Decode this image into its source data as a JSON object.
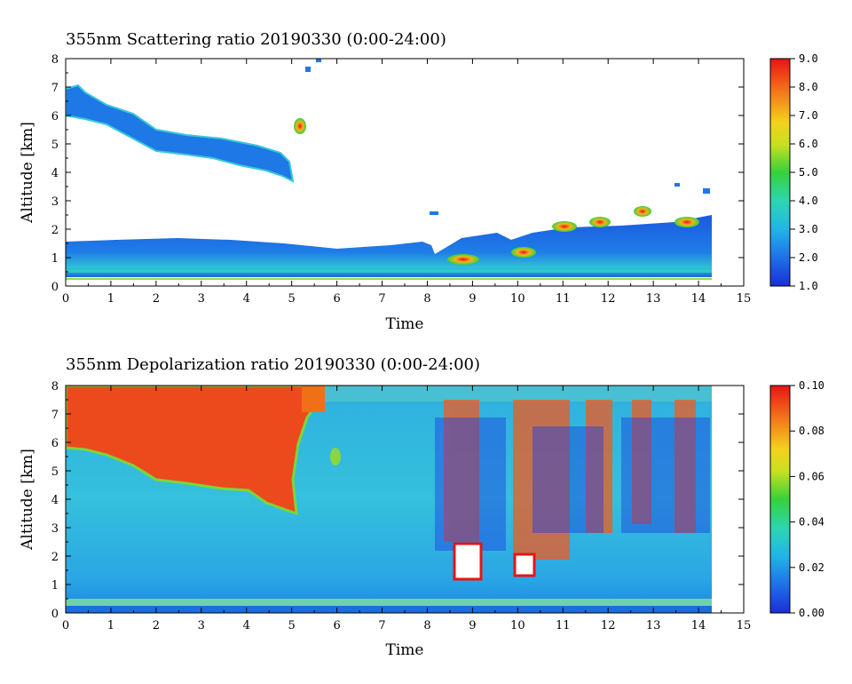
{
  "chart_data": [
    {
      "type": "heatmap",
      "title": "355nm Scattering ratio  20190330 (0:00-24:00)",
      "xlabel": "Time",
      "ylabel": "Altitude [km]",
      "xlim": [
        0,
        15
      ],
      "ylim": [
        0,
        8
      ],
      "x_ticks": [
        "0",
        "1",
        "2",
        "3",
        "4",
        "5",
        "6",
        "7",
        "8",
        "9",
        "10",
        "11",
        "12",
        "13",
        "14",
        "15"
      ],
      "y_ticks": [
        "0",
        "1",
        "2",
        "3",
        "4",
        "5",
        "6",
        "7",
        "8"
      ],
      "colorbar": {
        "min": 1.0,
        "max": 9.0,
        "ticks": [
          "1.0",
          "2.0",
          "3.0",
          "4.0",
          "5.0",
          "6.0",
          "7.0",
          "8.0",
          "9.0"
        ]
      },
      "data_end_time": 14.3,
      "colors": {
        "low": "#1a4fe0",
        "mid": "#33c4d0",
        "high": "#e8311a"
      }
    },
    {
      "type": "heatmap",
      "title": "355nm Depolarization ratio  20190330 (0:00-24:00)",
      "xlabel": "Time",
      "ylabel": "Altitude [km]",
      "xlim": [
        0,
        15
      ],
      "ylim": [
        0,
        8
      ],
      "x_ticks": [
        "0",
        "1",
        "2",
        "3",
        "4",
        "5",
        "6",
        "7",
        "8",
        "9",
        "10",
        "11",
        "12",
        "13",
        "14",
        "15"
      ],
      "y_ticks": [
        "0",
        "1",
        "2",
        "3",
        "4",
        "5",
        "6",
        "7",
        "8"
      ],
      "colorbar": {
        "min": 0.0,
        "max": 0.1,
        "ticks": [
          "0.00",
          "0.02",
          "0.04",
          "0.06",
          "0.08",
          "0.10"
        ]
      },
      "data_end_time": 14.3,
      "colors": {
        "low": "#1a4fe0",
        "mid": "#33c4d0",
        "high": "#e8311a"
      }
    }
  ]
}
